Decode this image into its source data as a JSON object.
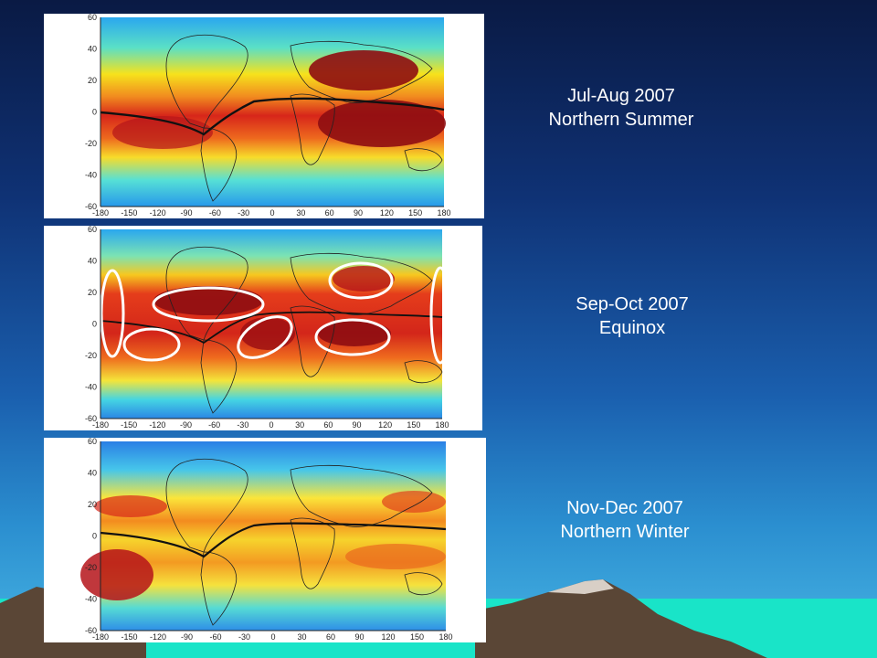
{
  "slide": {
    "colors": {
      "sky_top": "#0a1a44",
      "sky_bottom": "#49b6e4",
      "text": "#ffffff",
      "ocean": "#19e4c8",
      "mountain": "#5a4636"
    }
  },
  "panels": [
    {
      "id": "jul-aug",
      "caption_line1": "Jul-Aug 2007",
      "caption_line2": "Northern Summer",
      "has_highlight_ellipses": false
    },
    {
      "id": "sep-oct",
      "caption_line1": "Sep-Oct 2007",
      "caption_line2": "Equinox",
      "has_highlight_ellipses": true
    },
    {
      "id": "nov-dec",
      "caption_line1": "Nov-Dec 2007",
      "caption_line2": "Northern Winter",
      "has_highlight_ellipses": false
    }
  ],
  "axes": {
    "y_ticks": [
      "60",
      "40",
      "20",
      "0",
      "-20",
      "-40",
      "-60"
    ],
    "x_ticks": [
      "-180",
      "-150",
      "-120",
      "-90",
      "-60",
      "-30",
      "0",
      "30",
      "60",
      "90",
      "120",
      "150",
      "180"
    ],
    "xlim": [
      -180,
      180
    ],
    "ylim": [
      -60,
      60
    ]
  }
}
